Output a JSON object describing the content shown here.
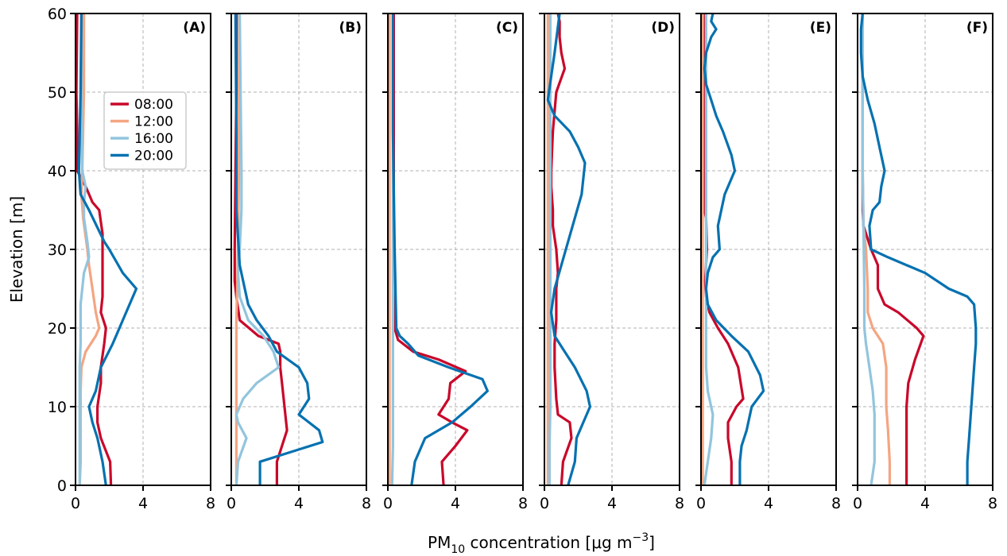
{
  "chart_data": [
    {
      "type": "line",
      "panel_label": "(A)",
      "xlim": [
        0,
        8
      ],
      "ylim": [
        0,
        60
      ],
      "grid": true,
      "series": [
        {
          "name": "08:00",
          "color": "#c9082a",
          "x": [
            2.1,
            2.05,
            1.5,
            1.3,
            1.3,
            1.5,
            1.5,
            1.7,
            1.8,
            1.5,
            1.6,
            1.6,
            1.6,
            1.6,
            1.6,
            1.4,
            1.0,
            0.6,
            0.1,
            0.1,
            0.05,
            0.1
          ],
          "y": [
            0,
            3,
            6,
            8,
            10,
            13,
            15,
            18,
            20,
            22,
            24,
            26,
            27,
            30,
            32,
            35,
            36,
            38,
            40,
            45,
            50,
            60
          ]
        },
        {
          "name": "12:00",
          "color": "#f4a582",
          "x": [
            0.25,
            0.3,
            0.3,
            0.3,
            0.3,
            0.35,
            0.6,
            1.2,
            1.4,
            1.2,
            1.0,
            0.8,
            0.7,
            0.45,
            0.35,
            0.4,
            0.5,
            0.5
          ],
          "y": [
            0,
            3,
            6,
            9,
            12,
            15,
            17,
            19,
            20,
            22,
            25,
            28,
            30,
            34,
            37,
            40,
            50,
            60
          ]
        },
        {
          "name": "16:00",
          "color": "#92c5de",
          "x": [
            0.25,
            0.25,
            0.25,
            0.25,
            0.25,
            0.3,
            0.3,
            0.3,
            0.4,
            0.5,
            0.8,
            0.7,
            0.5,
            0.5,
            0.6,
            0.4,
            0.35,
            0.35
          ],
          "y": [
            0,
            3,
            6,
            10,
            15,
            18,
            20,
            23,
            25,
            27,
            29,
            31,
            34,
            36,
            38,
            40,
            50,
            60
          ]
        },
        {
          "name": "20:00",
          "color": "#0571b0",
          "x": [
            1.8,
            1.6,
            1.3,
            1.0,
            0.8,
            1.2,
            1.5,
            2.2,
            2.8,
            3.6,
            2.8,
            2.0,
            1.7,
            0.8,
            0.3,
            0.2,
            0.3,
            0.35
          ],
          "y": [
            0,
            3,
            6,
            8,
            10,
            12,
            15,
            18,
            21,
            25,
            27,
            30,
            31,
            35,
            37,
            40,
            50,
            60
          ]
        }
      ]
    },
    {
      "type": "line",
      "panel_label": "(B)",
      "xlim": [
        0,
        8
      ],
      "ylim": [
        0,
        60
      ],
      "grid": true,
      "series": [
        {
          "name": "08:00",
          "color": "#c9082a",
          "x": [
            2.7,
            2.7,
            3.3,
            3.2,
            3.1,
            3.0,
            2.9,
            2.9,
            2.8,
            1.6,
            0.5,
            0.3,
            0.2,
            0.2,
            0.25,
            0.3,
            0.3
          ],
          "y": [
            0,
            3,
            7,
            9,
            11,
            13,
            15,
            17,
            18,
            19,
            21,
            24,
            26,
            30,
            40,
            50,
            60
          ]
        },
        {
          "name": "12:00",
          "color": "#f4a582",
          "x": [
            0.3,
            0.3,
            0.3,
            0.3,
            0.3,
            0.3,
            0.3,
            0.3,
            0.35,
            0.4,
            0.45,
            0.45,
            0.45
          ],
          "y": [
            0,
            3,
            6,
            10,
            13,
            15,
            18,
            21,
            25,
            30,
            40,
            50,
            60
          ]
        },
        {
          "name": "16:00",
          "color": "#92c5de",
          "x": [
            0.3,
            0.4,
            0.9,
            0.4,
            0.3,
            0.7,
            1.5,
            2.8,
            2.5,
            1.9,
            1.0,
            0.5,
            0.4,
            0.5,
            0.6,
            0.6,
            0.5
          ],
          "y": [
            0,
            3,
            6,
            8,
            9,
            11,
            13,
            15,
            17,
            19,
            21,
            24,
            27,
            30,
            35,
            40,
            60
          ]
        },
        {
          "name": "20:00",
          "color": "#0571b0",
          "x": [
            1.7,
            1.7,
            5.4,
            5.2,
            4.0,
            4.6,
            4.5,
            4.0,
            2.7,
            2.2,
            1.5,
            1.0,
            0.8,
            0.5,
            0.3,
            0.3,
            0.25
          ],
          "y": [
            0,
            3,
            5.5,
            7,
            9,
            11,
            13,
            15,
            17,
            19,
            21,
            23,
            25,
            28,
            35,
            45,
            60
          ]
        }
      ]
    },
    {
      "type": "line",
      "panel_label": "(C)",
      "xlim": [
        0,
        8
      ],
      "ylim": [
        0,
        60
      ],
      "grid": true,
      "series": [
        {
          "name": "08:00",
          "color": "#c9082a",
          "x": [
            3.3,
            3.2,
            4.0,
            4.7,
            3.8,
            3.0,
            3.6,
            3.7,
            4.6,
            3.0,
            1.5,
            0.6,
            0.4,
            0.35,
            0.35
          ],
          "y": [
            0,
            3,
            5,
            7,
            8,
            9,
            11,
            13,
            14.5,
            16,
            17,
            18.5,
            20,
            30,
            60
          ]
        },
        {
          "name": "12:00",
          "color": "#f4a582",
          "x": [
            0.1,
            0.1,
            0.1,
            0.1,
            0.1
          ],
          "y": [
            0,
            15,
            30,
            45,
            60
          ]
        },
        {
          "name": "16:00",
          "color": "#92c5de",
          "x": [
            0.25,
            0.3,
            0.3,
            0.3,
            0.3,
            0.3
          ],
          "y": [
            0,
            5,
            10,
            20,
            40,
            60
          ]
        },
        {
          "name": "20:00",
          "color": "#0571b0",
          "x": [
            1.4,
            1.6,
            2.2,
            3.8,
            4.9,
            5.9,
            5.6,
            3.6,
            1.8,
            1.2,
            0.7,
            0.5,
            0.4,
            0.3,
            0.3
          ],
          "y": [
            0,
            3,
            6,
            8,
            10,
            12,
            13.5,
            15,
            16.5,
            18,
            19,
            20,
            30,
            45,
            60
          ]
        }
      ]
    },
    {
      "type": "line",
      "panel_label": "(D)",
      "xlim": [
        0,
        8
      ],
      "ylim": [
        0,
        60
      ],
      "grid": true,
      "series": [
        {
          "name": "08:00",
          "color": "#c9082a",
          "x": [
            1.0,
            1.1,
            1.6,
            1.5,
            0.8,
            0.7,
            0.6,
            0.6,
            0.7,
            0.7,
            0.8,
            0.7,
            0.5,
            0.5,
            0.4,
            0.4,
            0.5,
            0.7,
            1.2,
            1.0,
            0.9,
            0.9,
            0.8
          ],
          "y": [
            0,
            3,
            6,
            8,
            9,
            11,
            15,
            18,
            21,
            25,
            27,
            30,
            33,
            35,
            38,
            40,
            45,
            50,
            53,
            55,
            57,
            59,
            60
          ]
        },
        {
          "name": "12:00",
          "color": "#f4a582",
          "x": [
            0.2,
            0.2,
            0.2,
            0.2,
            0.2,
            0.2
          ],
          "y": [
            0,
            10,
            20,
            30,
            40,
            60
          ]
        },
        {
          "name": "16:00",
          "color": "#92c5de",
          "x": [
            0.3,
            0.3,
            0.35,
            0.35,
            0.35,
            0.35,
            0.35
          ],
          "y": [
            0,
            5,
            10,
            20,
            30,
            45,
            60
          ]
        },
        {
          "name": "20:00",
          "color": "#0571b0",
          "x": [
            1.4,
            1.8,
            1.9,
            2.1,
            2.7,
            2.5,
            1.8,
            1.2,
            0.6,
            0.4,
            0.6,
            1.0,
            1.4,
            1.8,
            2.2,
            2.4,
            2.0,
            1.5,
            0.6,
            0.2,
            0.4,
            0.6,
            0.9
          ],
          "y": [
            0,
            3,
            6,
            7,
            10,
            12,
            15,
            17,
            19,
            22,
            25,
            28,
            31,
            34,
            37,
            41,
            43,
            45,
            47,
            49,
            52,
            55,
            60
          ]
        }
      ]
    },
    {
      "type": "line",
      "panel_label": "(E)",
      "xlim": [
        0,
        8
      ],
      "ylim": [
        0,
        60
      ],
      "grid": true,
      "series": [
        {
          "name": "08:00",
          "color": "#c9082a",
          "x": [
            1.8,
            1.8,
            1.6,
            1.6,
            2.1,
            2.5,
            2.2,
            1.6,
            1.0,
            0.5,
            0.3,
            0.25,
            0.35,
            0.3,
            0.2,
            0.2,
            0.2
          ],
          "y": [
            0,
            3,
            6,
            8,
            10,
            11,
            15,
            18,
            20,
            22,
            24,
            26,
            30,
            34,
            35,
            45,
            60
          ]
        },
        {
          "name": "12:00",
          "color": "#f4a582",
          "x": [
            0.1,
            0.1,
            0.1,
            0.1,
            0.1
          ],
          "y": [
            0,
            15,
            30,
            45,
            60
          ]
        },
        {
          "name": "16:00",
          "color": "#92c5de",
          "x": [
            0.2,
            0.4,
            0.6,
            0.7,
            0.4,
            0.3,
            0.3,
            0.3,
            0.3,
            0.3
          ],
          "y": [
            0,
            3,
            6,
            9,
            12,
            15,
            20,
            30,
            45,
            60
          ]
        },
        {
          "name": "20:00",
          "color": "#0571b0",
          "x": [
            2.3,
            2.3,
            2.4,
            2.7,
            3.0,
            3.7,
            3.5,
            2.8,
            1.8,
            0.9,
            0.4,
            0.3,
            0.4,
            0.7,
            1.1,
            1.0,
            1.4,
            2.0,
            1.8,
            1.3,
            0.9,
            0.6,
            0.3,
            0.2,
            0.3,
            0.6,
            0.9,
            0.6,
            0.7
          ],
          "y": [
            0,
            3,
            5,
            7,
            10,
            12,
            14,
            17,
            19,
            21,
            23,
            25,
            27,
            29,
            30,
            33,
            37,
            40,
            42,
            45,
            47,
            49,
            51,
            53,
            55,
            57,
            58,
            59,
            60
          ]
        }
      ]
    },
    {
      "type": "line",
      "panel_label": "(F)",
      "xlim": [
        0,
        8
      ],
      "ylim": [
        0,
        60
      ],
      "grid": true,
      "series": [
        {
          "name": "08:00",
          "color": "#c9082a",
          "x": [
            2.9,
            2.9,
            2.9,
            2.9,
            3.0,
            3.4,
            3.9,
            3.5,
            2.4,
            1.6,
            1.2,
            1.2,
            1.0,
            0.8,
            0.5,
            0.35,
            0.3,
            0.3,
            0.3,
            0.3
          ],
          "y": [
            0,
            3,
            7,
            10,
            13,
            16,
            19,
            20,
            22,
            23,
            25,
            28,
            29,
            30,
            32,
            33,
            35,
            40,
            50,
            60
          ]
        },
        {
          "name": "12:00",
          "color": "#f4a582",
          "x": [
            1.9,
            1.9,
            1.8,
            1.7,
            1.7,
            1.5,
            0.9,
            0.6,
            0.6,
            0.5,
            0.35,
            0.3,
            0.3
          ],
          "y": [
            0,
            3,
            7,
            10,
            15,
            18,
            20,
            22,
            25,
            30,
            33,
            40,
            60
          ]
        },
        {
          "name": "16:00",
          "color": "#92c5de",
          "x": [
            0.8,
            1.0,
            1.0,
            1.0,
            0.9,
            0.7,
            0.5,
            0.4,
            0.4,
            0.3,
            0.3
          ],
          "y": [
            0,
            3,
            6,
            9,
            12,
            15,
            18,
            20,
            25,
            40,
            60
          ]
        },
        {
          "name": "20:00",
          "color": "#0571b0",
          "x": [
            6.5,
            6.5,
            6.6,
            6.7,
            6.8,
            6.9,
            7.0,
            7.0,
            6.9,
            6.5,
            5.4,
            4.0,
            1.8,
            0.8,
            0.7,
            0.9,
            1.3,
            1.4,
            1.6,
            1.3,
            1.0,
            0.6,
            0.3,
            0.2,
            0.2,
            0.3
          ],
          "y": [
            0,
            3,
            6,
            9,
            12,
            15,
            18,
            20,
            23,
            24,
            25,
            27,
            29,
            30,
            33,
            35,
            36,
            38,
            40,
            43,
            46,
            49,
            52,
            55,
            58,
            60
          ]
        }
      ]
    }
  ],
  "axes": {
    "ylabel": "Elevation [m]",
    "xlabel": "PM₁₀ concentration [μg m⁻³]",
    "xlabel_parts": {
      "base": "PM",
      "sub": "10",
      "mid": " concentration [μg m",
      "sup": "−3",
      "end": "]"
    },
    "xticks": [
      0,
      4,
      8
    ],
    "yticks": [
      0,
      10,
      20,
      30,
      40,
      50,
      60
    ]
  },
  "legend": {
    "placement": "upper-left of panel (A)",
    "entries": [
      {
        "label": "08:00",
        "color": "#c9082a"
      },
      {
        "label": "12:00",
        "color": "#f4a582"
      },
      {
        "label": "16:00",
        "color": "#92c5de"
      },
      {
        "label": "20:00",
        "color": "#0571b0"
      }
    ]
  }
}
